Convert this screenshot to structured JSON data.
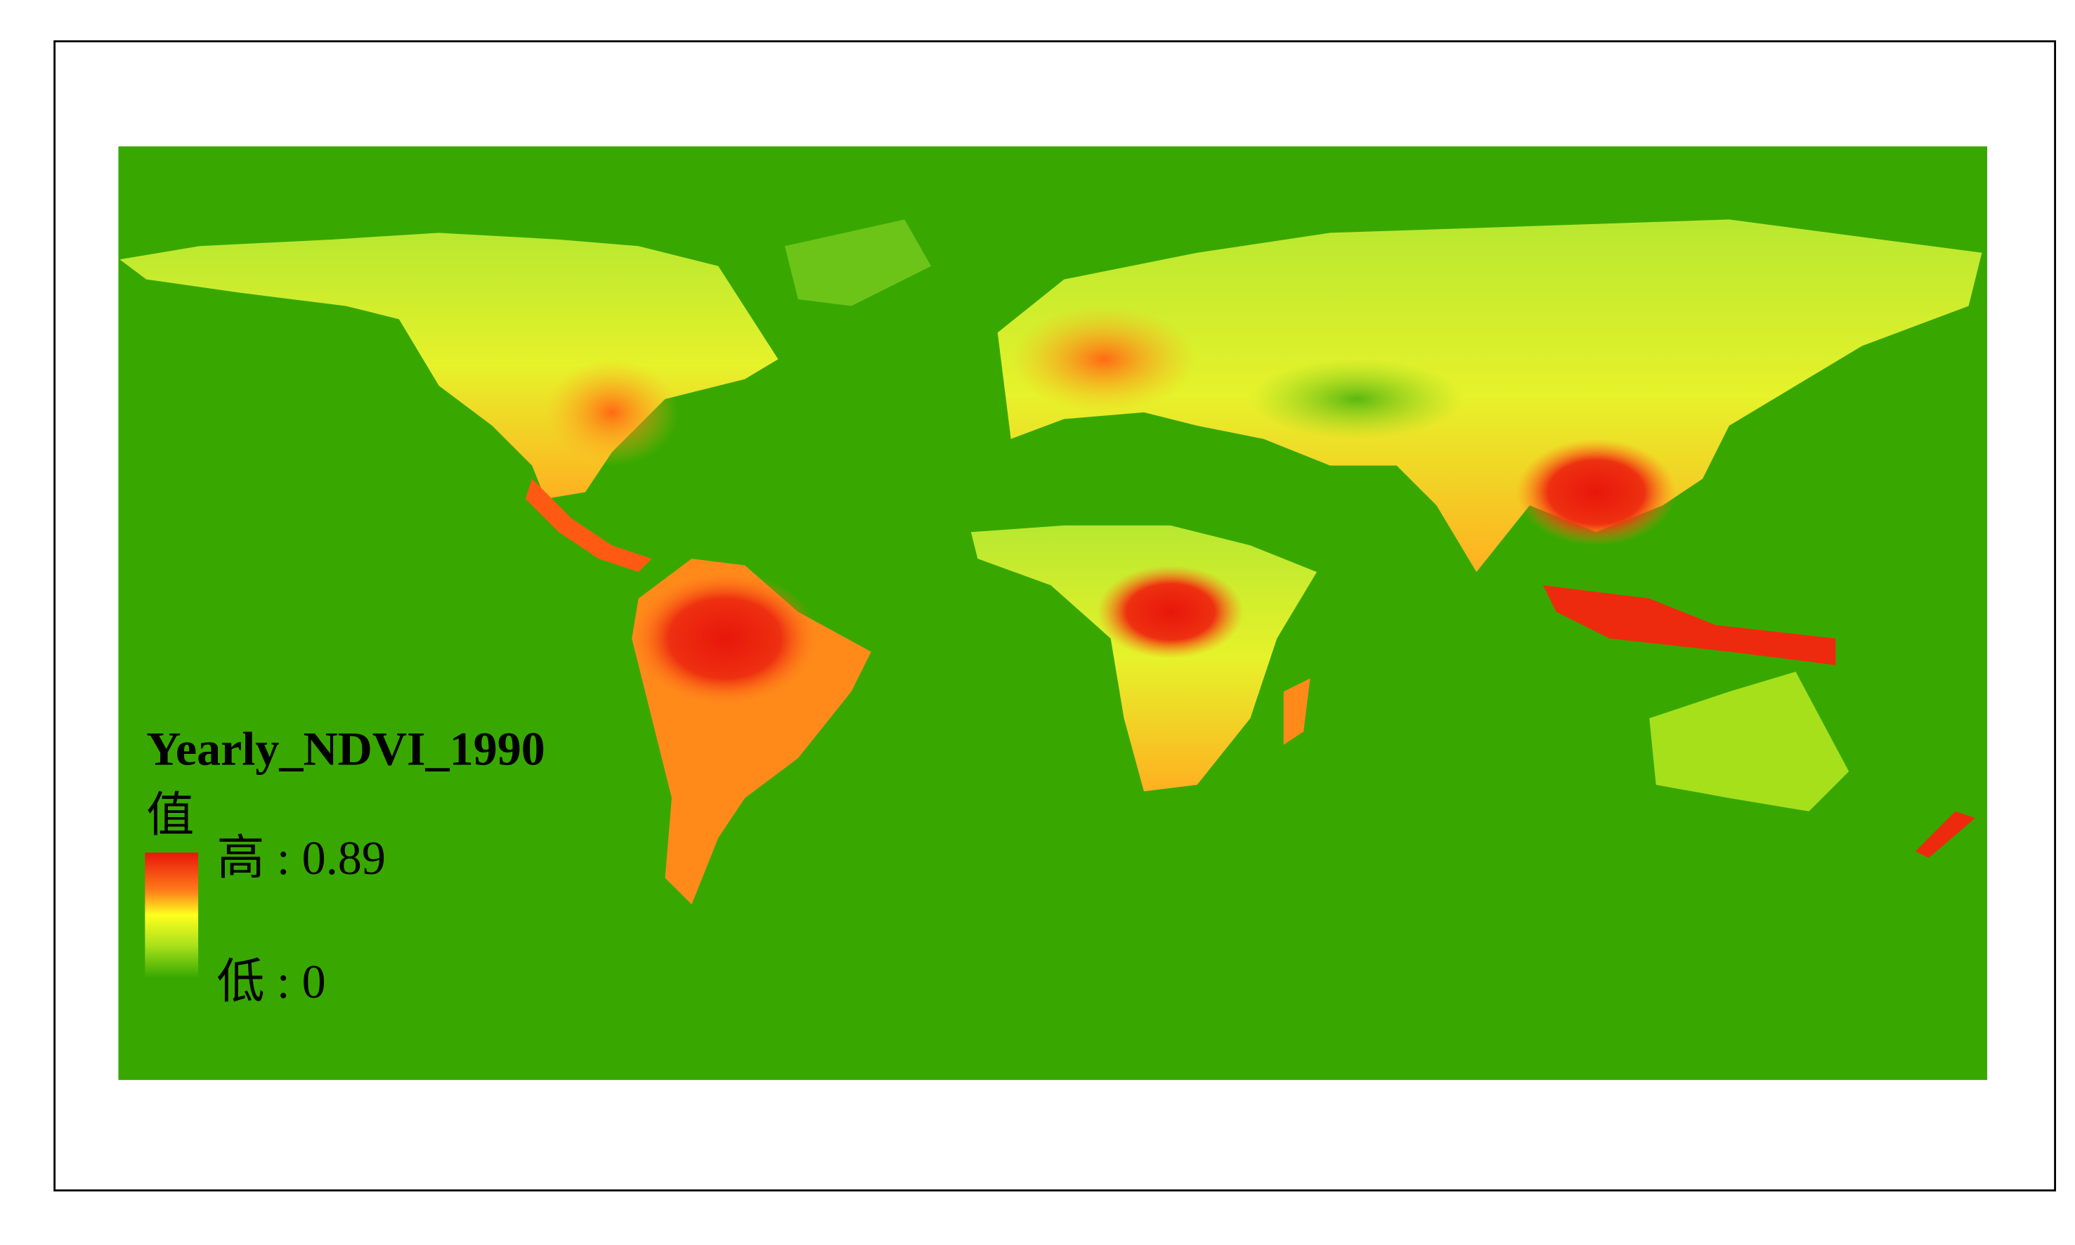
{
  "title": "Yearly_NDVI_1990",
  "legend": {
    "heading": "值",
    "high_label": "高 : 0.89",
    "low_label": "低 : 0"
  }
}
